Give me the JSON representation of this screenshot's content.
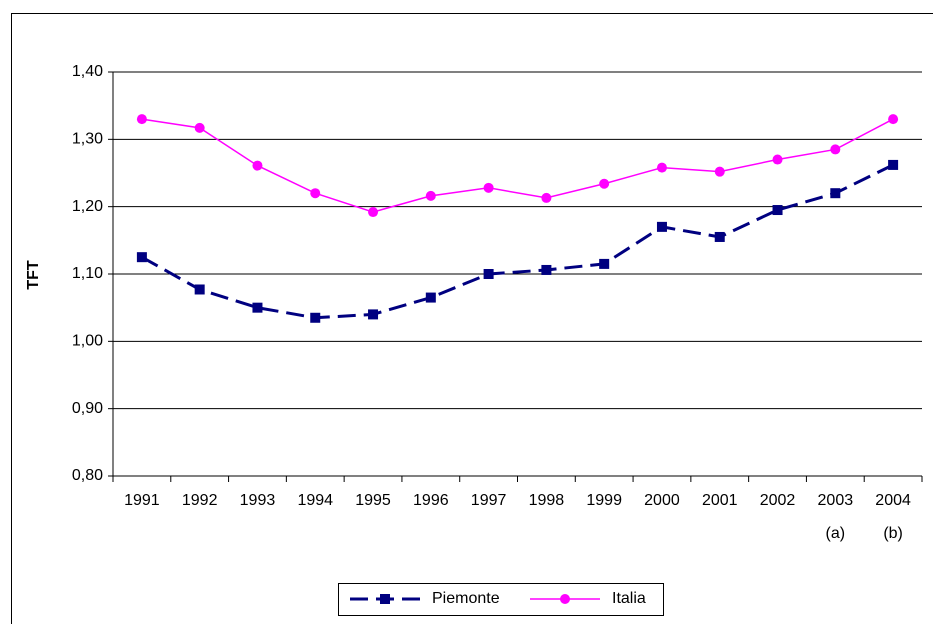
{
  "chart_data": {
    "type": "line",
    "y_label": "TFT",
    "categories": [
      "1991",
      "1992",
      "1993",
      "1994",
      "1995",
      "1996",
      "1997",
      "1998",
      "1999",
      "2000",
      "2001",
      "2002",
      "2003",
      "2004"
    ],
    "category_notes": [
      null,
      null,
      null,
      null,
      null,
      null,
      null,
      null,
      null,
      null,
      null,
      null,
      "(a)",
      "(b)"
    ],
    "series": [
      {
        "name": "Piemonte",
        "color": "#000080",
        "dashed": true,
        "marker": "square",
        "values": [
          1.125,
          1.077,
          1.05,
          1.035,
          1.04,
          1.065,
          1.1,
          1.106,
          1.115,
          1.17,
          1.155,
          1.195,
          1.22,
          1.262
        ]
      },
      {
        "name": "Italia",
        "color": "#ff00ff",
        "dashed": false,
        "marker": "circle",
        "values": [
          1.33,
          1.317,
          1.261,
          1.22,
          1.192,
          1.216,
          1.228,
          1.213,
          1.234,
          1.258,
          1.252,
          1.27,
          1.285,
          1.33
        ]
      }
    ],
    "ylim": [
      0.8,
      1.4
    ],
    "yticks": [
      {
        "value": 0.8,
        "label": "0,80"
      },
      {
        "value": 0.9,
        "label": "0,90"
      },
      {
        "value": 1.0,
        "label": "1,00"
      },
      {
        "value": 1.1,
        "label": "1,10"
      },
      {
        "value": 1.2,
        "label": "1,20"
      },
      {
        "value": 1.3,
        "label": "1,30"
      },
      {
        "value": 1.4,
        "label": "1,40"
      }
    ],
    "grid": true,
    "legend": "bottom"
  }
}
